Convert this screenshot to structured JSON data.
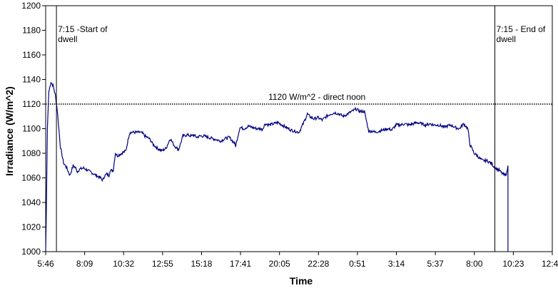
{
  "chart_data": {
    "type": "line",
    "title": "",
    "xlabel": "Time",
    "ylabel": "Irradiance (W/m^2)",
    "ylim": [
      1000,
      1200
    ],
    "yticks": [
      1000,
      1020,
      1040,
      1060,
      1080,
      1100,
      1120,
      1140,
      1160,
      1180,
      1200
    ],
    "xlim_hours": [
      0,
      24
    ],
    "xtick_labels": [
      "5:46",
      "8:09",
      "10:32",
      "12:55",
      "15:18",
      "17:41",
      "20:05",
      "22:28",
      "0:51",
      "3:14",
      "5:37",
      "8:00",
      "10:23",
      "12:46"
    ],
    "grid": false,
    "series": [
      {
        "color": "#000080",
        "x_hours": [
          0.0,
          0.03,
          0.08,
          0.15,
          0.25,
          0.35,
          0.45,
          0.55,
          0.7,
          0.85,
          1.0,
          1.15,
          1.3,
          1.42,
          1.5,
          1.6,
          1.8,
          2.0,
          2.2,
          2.4,
          2.6,
          2.7,
          2.8,
          2.9,
          3.0,
          3.05,
          3.2,
          3.3,
          3.4,
          3.6,
          3.8,
          3.95,
          4.0,
          4.2,
          4.5,
          4.6,
          4.7,
          4.8,
          4.9,
          5.0,
          5.05,
          5.1,
          5.3,
          5.5,
          5.7,
          5.9,
          6.1,
          6.3,
          6.5,
          6.7,
          6.9,
          7.0,
          7.08,
          7.15,
          7.3,
          7.5,
          7.7,
          7.9,
          8.1,
          8.3,
          8.5,
          8.7,
          8.95,
          9.0,
          9.2,
          9.4,
          9.6,
          9.8,
          10.0,
          10.2,
          10.25,
          10.4,
          10.6,
          10.8,
          11.0,
          11.2,
          11.4,
          11.6,
          11.8,
          12.0,
          12.2,
          12.35,
          12.4,
          12.5,
          12.7,
          12.9,
          13.1,
          13.3,
          13.5,
          13.7,
          13.9,
          14.1,
          14.3,
          14.5,
          14.7,
          14.9,
          15.1,
          15.3,
          15.5,
          15.6,
          15.8,
          16.0,
          16.2,
          16.4,
          16.6,
          16.8,
          17.0,
          17.2,
          17.4,
          17.6,
          17.8,
          18.0,
          18.2,
          18.4,
          18.6,
          18.8,
          18.85,
          19.0,
          19.2,
          19.4,
          19.6,
          19.8,
          20.0,
          20.1,
          20.3,
          20.45,
          20.55,
          20.7,
          20.9,
          21.1,
          21.3,
          21.5,
          21.6,
          21.75,
          21.85,
          21.9
        ],
        "y_values": [
          1000,
          1030,
          1100,
          1130,
          1138,
          1135,
          1128,
          1115,
          1085,
          1072,
          1068,
          1062,
          1070,
          1068,
          1065,
          1067,
          1068,
          1066,
          1064,
          1062,
          1060,
          1058,
          1062,
          1063,
          1062,
          1066,
          1066,
          1080,
          1078,
          1080,
          1082,
          1095,
          1097,
          1097,
          1097,
          1096,
          1094,
          1093,
          1092,
          1090,
          1088,
          1087,
          1084,
          1082,
          1084,
          1092,
          1086,
          1083,
          1094,
          1095,
          1094,
          1095,
          1094,
          1093,
          1094,
          1094,
          1093,
          1092,
          1091,
          1090,
          1092,
          1093,
          1088,
          1086,
          1101,
          1100,
          1102,
          1101,
          1100,
          1100,
          1099,
          1104,
          1103,
          1104,
          1105,
          1103,
          1101,
          1099,
          1098,
          1097,
          1104,
          1110,
          1112,
          1110,
          1108,
          1109,
          1107,
          1110,
          1112,
          1113,
          1112,
          1110,
          1112,
          1114,
          1116,
          1114,
          1114,
          1098,
          1098,
          1097,
          1098,
          1099,
          1100,
          1099,
          1103,
          1103,
          1104,
          1103,
          1104,
          1105,
          1104,
          1103,
          1104,
          1103,
          1103,
          1102,
          1101,
          1102,
          1103,
          1101,
          1100,
          1104,
          1100,
          1087,
          1080,
          1078,
          1076,
          1074,
          1074,
          1072,
          1068,
          1066,
          1064,
          1062,
          1064,
          1070
        ]
      }
    ],
    "annotations": [
      {
        "kind": "vline",
        "x_hours": 0.51,
        "lines": [
          "7:15 -Start of",
          "dwell"
        ]
      },
      {
        "kind": "vline",
        "x_hours": 21.28,
        "lines": [
          "7:15 - End of",
          "dwell"
        ]
      },
      {
        "kind": "hline",
        "y": 1120,
        "style": "dotted",
        "label": "1120 W/m^2 - direct noon"
      }
    ]
  }
}
